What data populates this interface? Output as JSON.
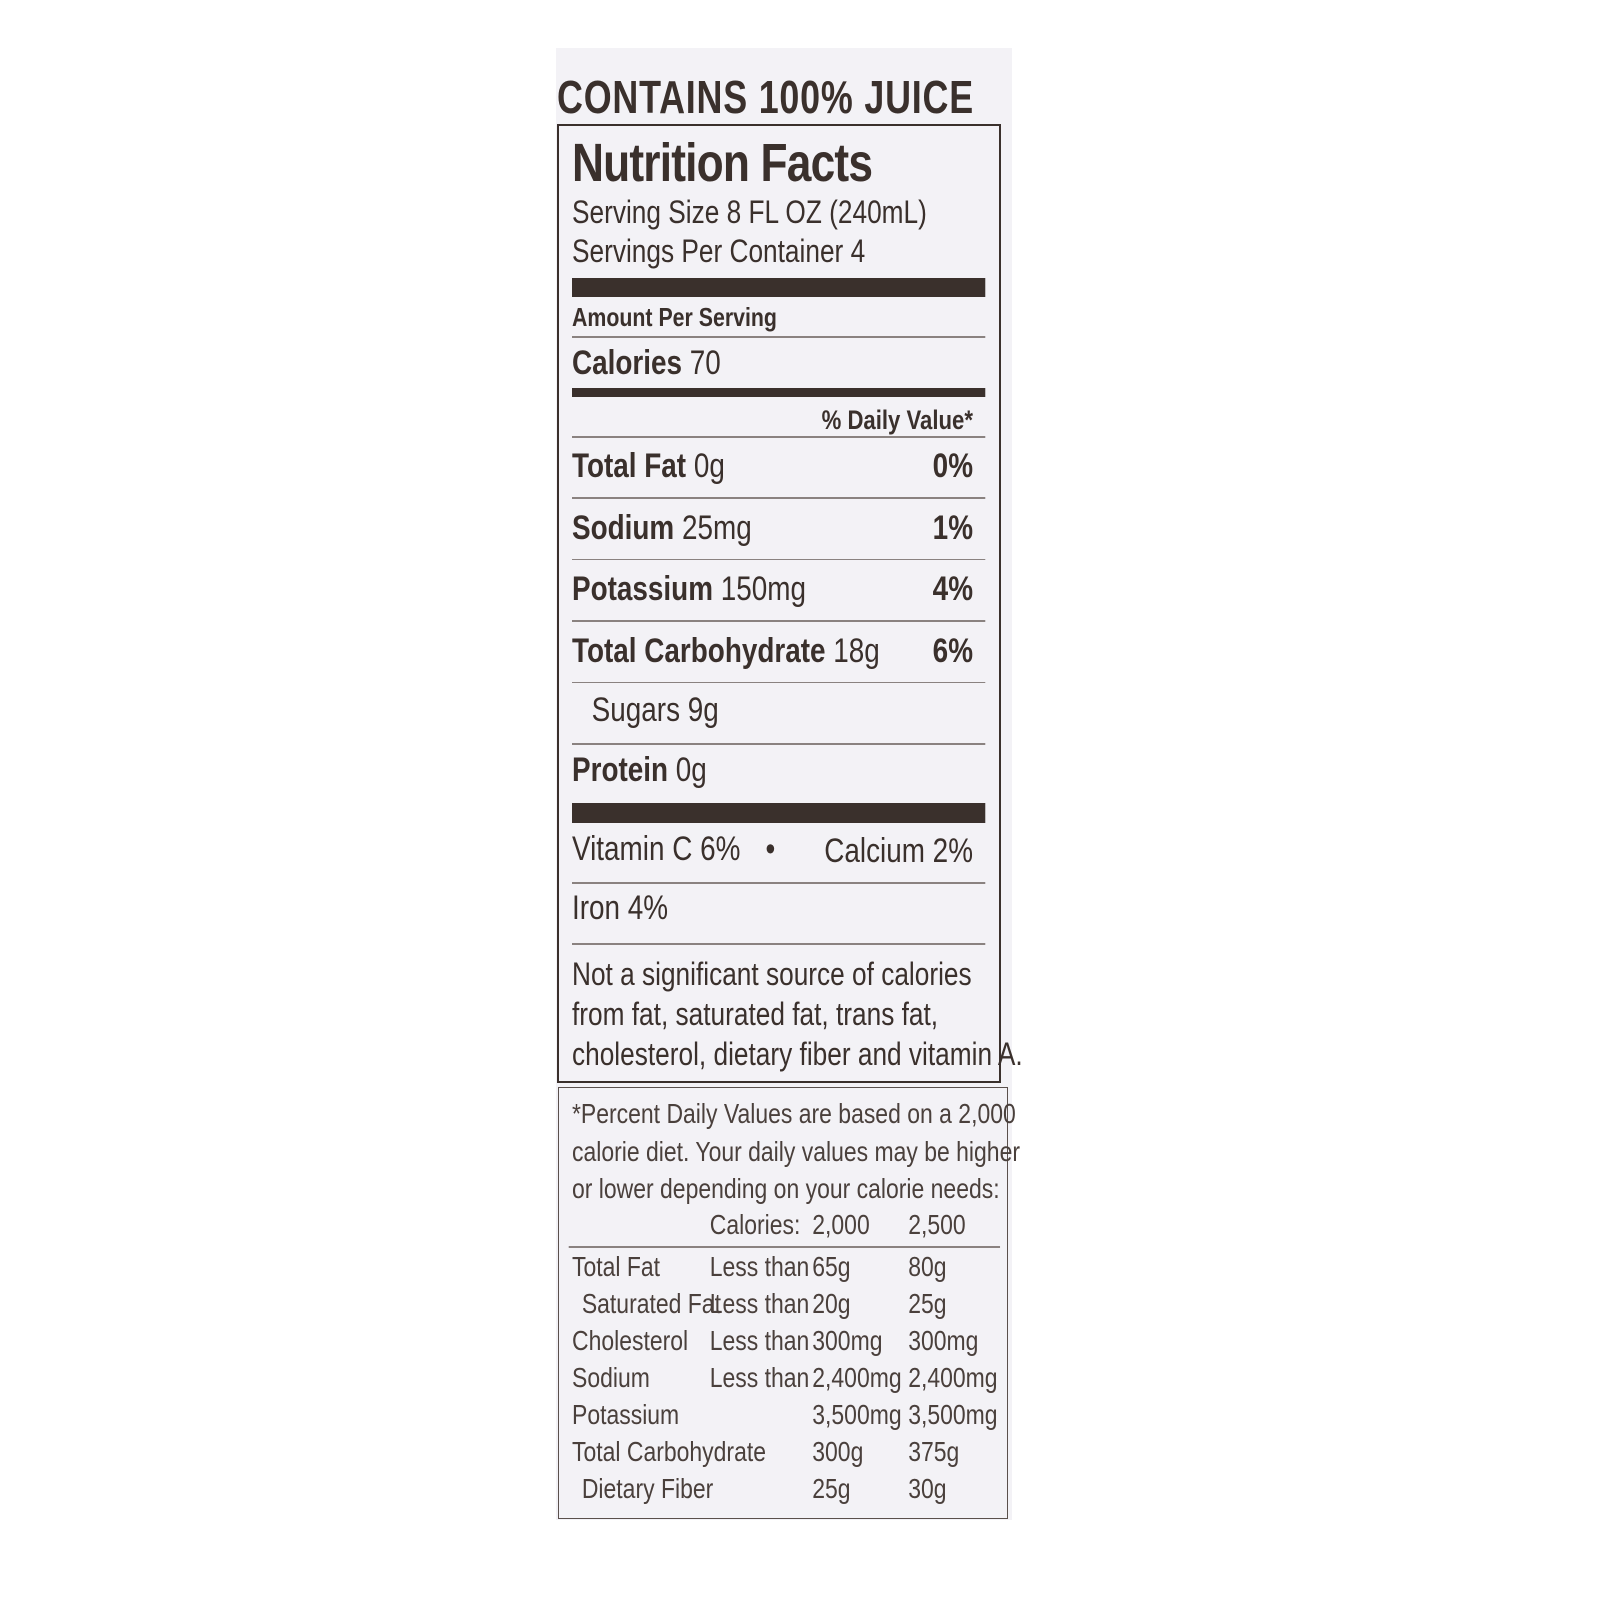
{
  "header": {
    "claim": "CONTAINS 100% JUICE"
  },
  "facts": {
    "title": "Nutrition Facts",
    "serving_size": "Serving Size 8 FL OZ (240mL)",
    "servings_per_container": "Servings Per Container 4",
    "amount_per_serving": "Amount Per Serving",
    "calories": {
      "label": "Calories",
      "amount": "70"
    },
    "daily_value_heading": "% Daily Value*",
    "nutrients": [
      {
        "label": "Total Fat",
        "amount": "0g",
        "dv": "0%"
      },
      {
        "label": "Sodium",
        "amount": "25mg",
        "dv": "1%"
      },
      {
        "label": "Potassium",
        "amount": "150mg",
        "dv": "4%"
      },
      {
        "label": "Total Carbohydrate",
        "amount": "18g",
        "dv": "6%"
      }
    ],
    "sugars": "Sugars 9g",
    "protein": {
      "label": "Protein",
      "amount": "0g"
    },
    "vitamins": [
      "Vitamin C 6%",
      "Calcium 2%",
      "Iron 4%"
    ],
    "separator": "•",
    "note": [
      "Not a significant source of calories",
      "from fat, saturated fat, trans fat,",
      "cholesterol, dietary fiber and vitamin A."
    ]
  },
  "footnote": {
    "text": [
      "*Percent Daily Values are based on a 2,000",
      "calorie diet. Your daily values may be higher",
      "or lower depending on your calorie needs:"
    ],
    "columns": [
      "Calories:",
      "2,000",
      "2,500"
    ],
    "rows": [
      {
        "name": "Total Fat",
        "limit": "Less than",
        "low": "65g",
        "high": "80g"
      },
      {
        "name": "Saturated Fat",
        "limit": "Less than",
        "low": "20g",
        "high": "25g"
      },
      {
        "name": "Cholesterol",
        "limit": "Less than",
        "low": "300mg",
        "high": "300mg"
      },
      {
        "name": "Sodium",
        "limit": "Less than",
        "low": "2,400mg",
        "high": "2,400mg"
      },
      {
        "name": "Potassium",
        "low": "3,500mg",
        "high": "3,500mg"
      },
      {
        "name": "Total Carbohydrate",
        "low": "300g",
        "high": "375g"
      },
      {
        "name": "Dietary Fiber",
        "low": "25g",
        "high": "30g"
      }
    ]
  }
}
